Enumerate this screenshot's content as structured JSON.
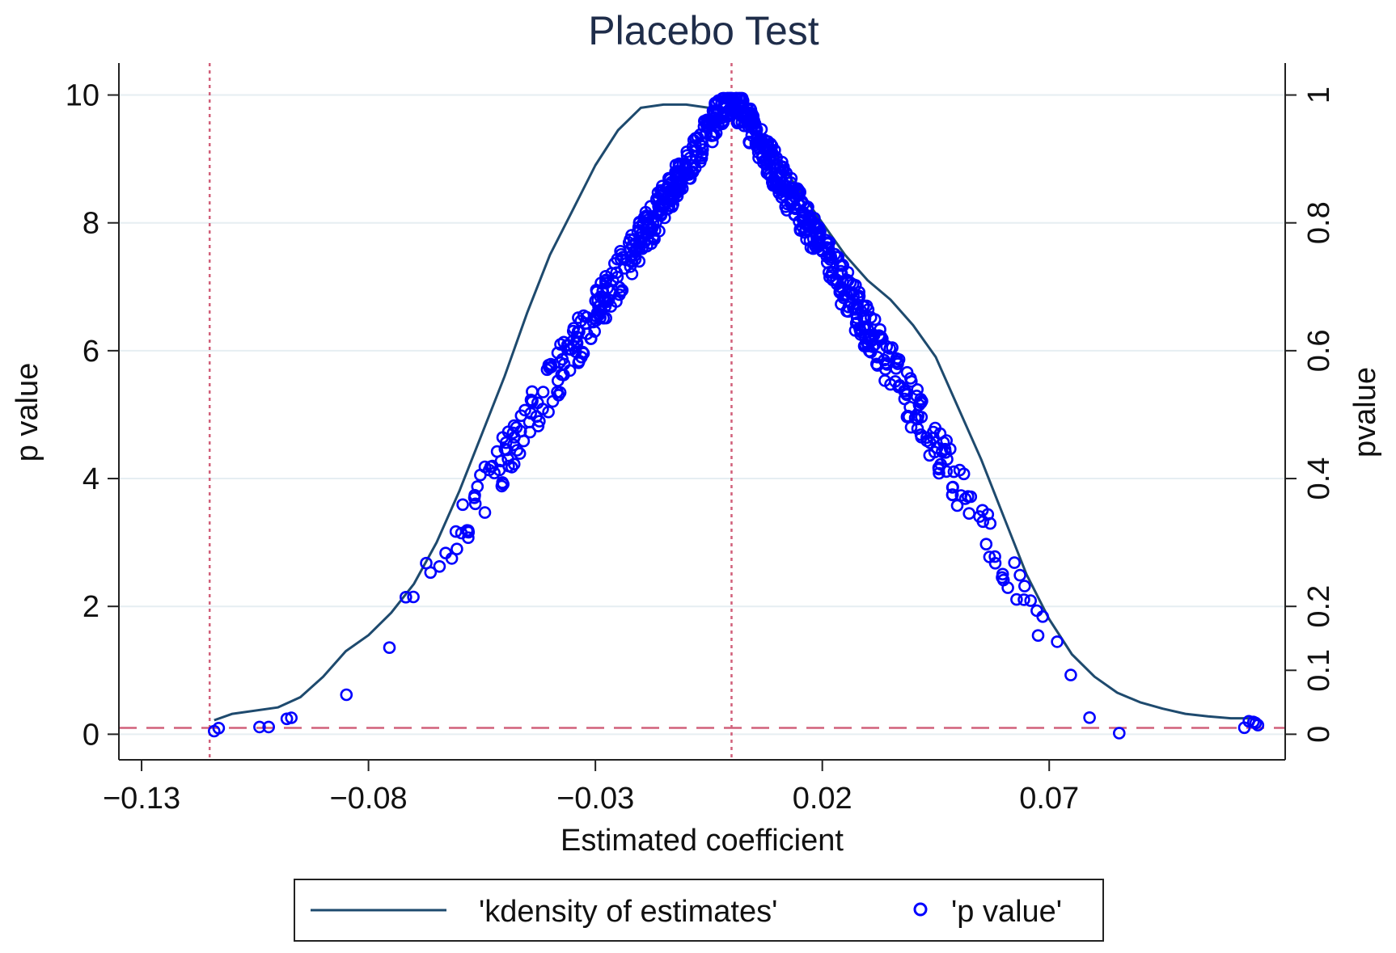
{
  "chart_data": {
    "type": "scatter",
    "title": "Placebo Test",
    "xlabel": "Estimated coefficient",
    "ylabel_left": "p value",
    "ylabel_right": "pvalue",
    "xlim": [
      -0.135,
      0.122
    ],
    "ylim_left": [
      -0.4,
      10.5
    ],
    "ylim_right": [
      -0.04,
      1.05
    ],
    "x_ticks": [
      {
        "value": -0.13,
        "label": "−0.13"
      },
      {
        "value": -0.08,
        "label": "−0.08"
      },
      {
        "value": -0.03,
        "label": "−0.03"
      },
      {
        "value": 0.02,
        "label": "0.02"
      },
      {
        "value": 0.07,
        "label": "0.07"
      }
    ],
    "y_left_ticks": [
      {
        "value": 0,
        "label": "0"
      },
      {
        "value": 2,
        "label": "2"
      },
      {
        "value": 4,
        "label": "4"
      },
      {
        "value": 6,
        "label": "6"
      },
      {
        "value": 8,
        "label": "8"
      },
      {
        "value": 10,
        "label": "10"
      }
    ],
    "y_right_ticks": [
      {
        "value": 0,
        "label": "0"
      },
      {
        "value": 0.1,
        "label": "0.1"
      },
      {
        "value": 0.2,
        "label": "0.2"
      },
      {
        "value": 0.4,
        "label": "0.4"
      },
      {
        "value": 0.6,
        "label": "0.6"
      },
      {
        "value": 0.8,
        "label": "0.8"
      },
      {
        "value": 1,
        "label": "1"
      }
    ],
    "reference_lines": {
      "vertical": [
        -0.115,
        0.0
      ],
      "horizontal_right_axis": 0.01
    },
    "legend": {
      "position": "bottom",
      "entries": [
        "'kdensity of estimates'",
        "'p value'"
      ]
    },
    "series": [
      {
        "name": "'kdensity of estimates'",
        "kind": "line",
        "axis": "left",
        "x": [
          -0.114,
          -0.11,
          -0.1,
          -0.095,
          -0.09,
          -0.085,
          -0.08,
          -0.075,
          -0.07,
          -0.065,
          -0.06,
          -0.055,
          -0.05,
          -0.045,
          -0.04,
          -0.035,
          -0.03,
          -0.025,
          -0.02,
          -0.015,
          -0.01,
          -0.005,
          0.0,
          0.005,
          0.01,
          0.015,
          0.02,
          0.025,
          0.03,
          0.035,
          0.04,
          0.045,
          0.05,
          0.055,
          0.06,
          0.065,
          0.07,
          0.075,
          0.08,
          0.085,
          0.09,
          0.095,
          0.1,
          0.105,
          0.11,
          0.116
        ],
        "y": [
          0.22,
          0.32,
          0.42,
          0.58,
          0.9,
          1.3,
          1.55,
          1.9,
          2.35,
          3.0,
          3.8,
          4.7,
          5.6,
          6.6,
          7.5,
          8.2,
          8.9,
          9.45,
          9.8,
          9.85,
          9.85,
          9.8,
          9.7,
          9.4,
          9.0,
          8.5,
          8.0,
          7.5,
          7.1,
          6.8,
          6.4,
          5.9,
          5.1,
          4.3,
          3.4,
          2.5,
          1.8,
          1.25,
          0.9,
          0.65,
          0.5,
          0.4,
          0.32,
          0.28,
          0.25,
          0.25
        ]
      },
      {
        "name": "'p value'",
        "kind": "scatter",
        "axis": "right",
        "model": {
          "peak_x": 0.0,
          "left_end_x": -0.115,
          "right_end_x": 0.116,
          "n_points": 800
        }
      }
    ]
  },
  "colors": {
    "kdensity_line": "#1e4a6e",
    "markers": "#0000ff",
    "reference_lines": "#d1607a",
    "gridlines": "#e6eef2",
    "axes": "#222222",
    "title": "#1f2d4a"
  }
}
